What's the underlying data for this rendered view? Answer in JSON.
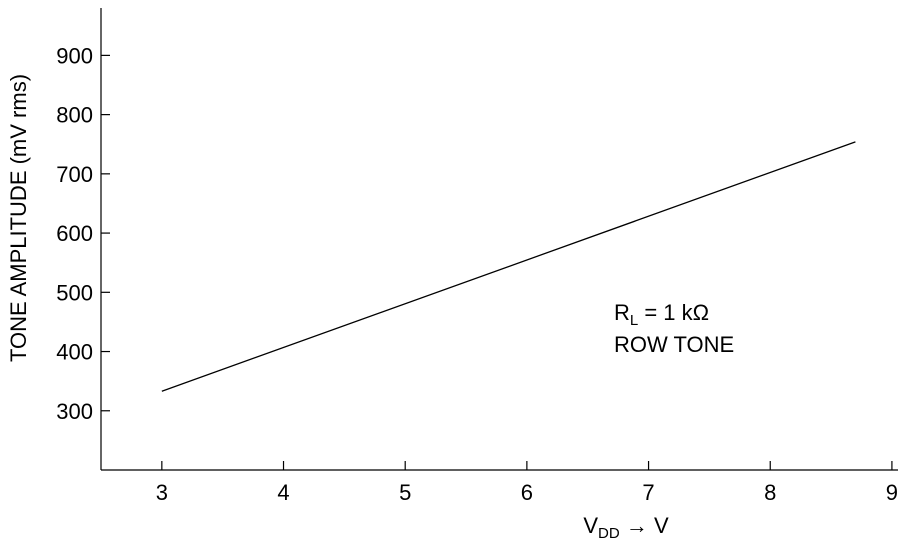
{
  "chart_data": {
    "type": "line",
    "title": "",
    "xlabel": {
      "main": "V",
      "sub": "DD",
      "suffix": " → V"
    },
    "ylabel": "TONE AMPLITUDE (mV rms)",
    "xlim": [
      2.5,
      9.05
    ],
    "ylim": [
      200,
      980
    ],
    "x_ticks": [
      3,
      4,
      5,
      6,
      7,
      8,
      9
    ],
    "y_ticks": [
      300,
      400,
      500,
      600,
      700,
      800,
      900
    ],
    "grid": false,
    "series": [
      {
        "x": [
          3.0,
          8.7
        ],
        "y": [
          333,
          754
        ]
      }
    ],
    "annotations": [
      {
        "main": "R",
        "sub": "L",
        "suffix": " = 1 kΩ"
      },
      {
        "text": "ROW TONE"
      }
    ],
    "colors": {
      "line": "#000000",
      "axis": "#000000"
    }
  }
}
